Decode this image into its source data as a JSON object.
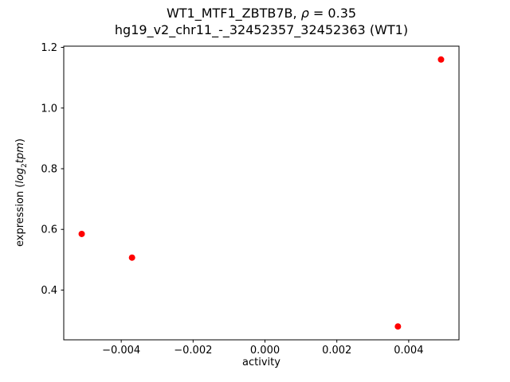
{
  "figure": {
    "title": {
      "pre": "WT1_MTF1_ZBTB7B, ",
      "rho": "ρ",
      "post": " = 0.35"
    },
    "subtitle": "hg19_v2_chr11_-_32452357_32452363 (WT1)",
    "xlabel": "activity",
    "ylabel": {
      "pre": "expression (",
      "log": "log",
      "sub": "2",
      "var": "tpm",
      "post": ")"
    }
  },
  "chart_data": {
    "type": "scatter",
    "title": "WT1_MTF1_ZBTB7B, ρ = 0.35",
    "subtitle": "hg19_v2_chr11_-_32452357_32452363 (WT1)",
    "xlabel": "activity",
    "ylabel": "expression (log2 tpm)",
    "marker_color": "#ff0000",
    "marker_radius": 4,
    "axes_color": "#000000",
    "grid": false,
    "legend": null,
    "points": [
      {
        "x": -0.0051,
        "y": 0.585
      },
      {
        "x": -0.0037,
        "y": 0.507
      },
      {
        "x": 0.0037,
        "y": 0.28
      },
      {
        "x": 0.0049,
        "y": 1.16
      }
    ],
    "xlim": [
      -0.0056,
      0.0054
    ],
    "ylim": [
      0.236,
      1.204
    ],
    "xticks": [
      -0.004,
      -0.002,
      0.0,
      0.002,
      0.004
    ],
    "xtick_labels": [
      "−0.004",
      "−0.002",
      "0.000",
      "0.002",
      "0.004"
    ],
    "yticks": [
      0.4,
      0.6,
      0.8,
      1.0,
      1.2
    ],
    "ytick_labels": [
      "0.4",
      "0.6",
      "0.8",
      "1.0",
      "1.2"
    ]
  }
}
